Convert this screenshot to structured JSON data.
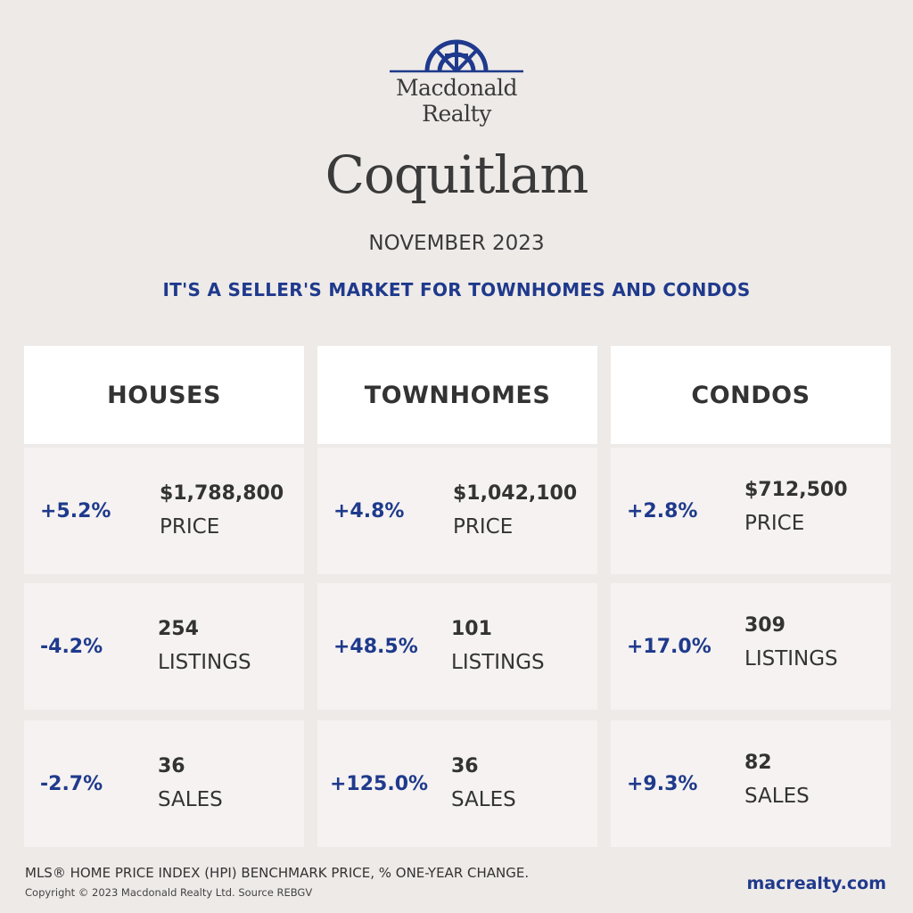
{
  "brand": {
    "name_line1": "Macdonald",
    "name_line2": "Realty",
    "color": "#1f3a8c"
  },
  "city": "Coquitlam",
  "month": "NOVEMBER 2023",
  "headline": "IT'S A SELLER'S MARKET FOR TOWNHOMES AND CONDOS",
  "columns": [
    {
      "title": "HOUSES",
      "price": {
        "change": "+5.2%",
        "value": "$1,788,800",
        "label": "PRICE"
      },
      "listings": {
        "change": "-4.2%",
        "value": "254",
        "label": "LISTINGS"
      },
      "sales": {
        "change": "-2.7%",
        "value": "36",
        "label": "SALES"
      }
    },
    {
      "title": "TOWNHOMES",
      "price": {
        "change": "+4.8%",
        "value": "$1,042,100",
        "label": "PRICE"
      },
      "listings": {
        "change": "+48.5%",
        "value": "101",
        "label": "LISTINGS"
      },
      "sales": {
        "change": "+125.0%",
        "value": "36",
        "label": "SALES"
      }
    },
    {
      "title": "CONDOS",
      "price": {
        "change": "+2.8%",
        "value": "$712,500",
        "label": "PRICE"
      },
      "listings": {
        "change": "+17.0%",
        "value": "309",
        "label": "LISTINGS"
      },
      "sales": {
        "change": "+9.3%",
        "value": "82",
        "label": "SALES"
      }
    }
  ],
  "footer": {
    "note": "MLS® HOME PRICE INDEX (HPI) BENCHMARK PRICE, % ONE-YEAR CHANGE.",
    "copyright": "Copyright © 2023 Macdonald Realty Ltd. Source REBGV",
    "website": "macrealty.com"
  }
}
